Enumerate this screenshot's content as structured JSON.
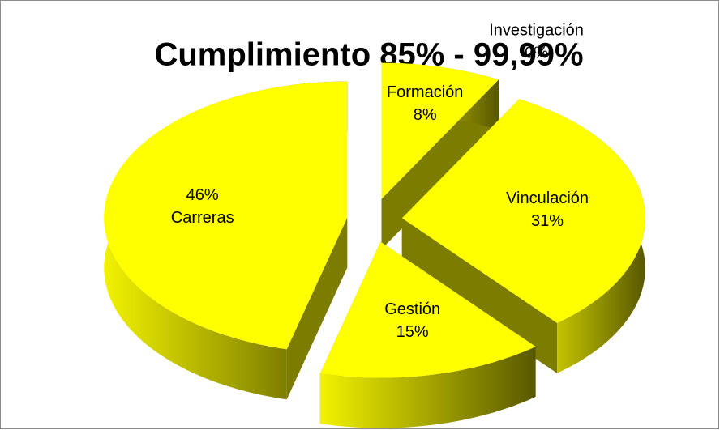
{
  "chart_data": {
    "type": "pie3d",
    "title": "Cumplimiento 85% - 99,99%",
    "categories": [
      "Formación",
      "Investigación",
      "Vinculación",
      "Gestión",
      "Carreras"
    ],
    "values": [
      8,
      0,
      31,
      15,
      46
    ],
    "value_labels": [
      "8%",
      "0%",
      "31%",
      "15%",
      "46%"
    ],
    "color": "#ffff00"
  }
}
